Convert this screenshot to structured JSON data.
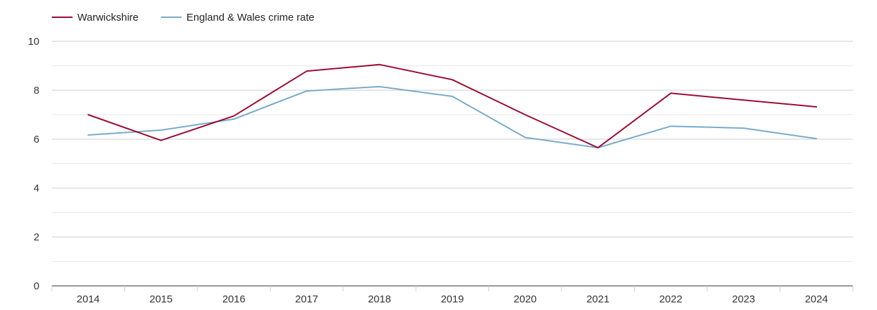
{
  "chart_data": {
    "type": "line",
    "title": "",
    "xlabel": "",
    "ylabel": "",
    "categories": [
      "2014",
      "2015",
      "2016",
      "2017",
      "2018",
      "2019",
      "2020",
      "2021",
      "2022",
      "2023",
      "2024"
    ],
    "ylim": [
      0,
      10
    ],
    "y_ticks": [
      "0",
      "2",
      "4",
      "6",
      "8",
      "10"
    ],
    "grid": true,
    "legend_position": "top-left",
    "series": [
      {
        "name": "Warwickshire",
        "color": "#9b0a30",
        "values": [
          7.0,
          5.95,
          6.95,
          8.78,
          9.05,
          8.43,
          7.0,
          5.65,
          7.88,
          7.6,
          7.32
        ]
      },
      {
        "name": "England & Wales crime rate",
        "color": "#77aacc",
        "values": [
          6.17,
          6.37,
          6.82,
          7.97,
          8.15,
          7.75,
          6.07,
          5.65,
          6.53,
          6.45,
          6.02
        ]
      }
    ]
  }
}
